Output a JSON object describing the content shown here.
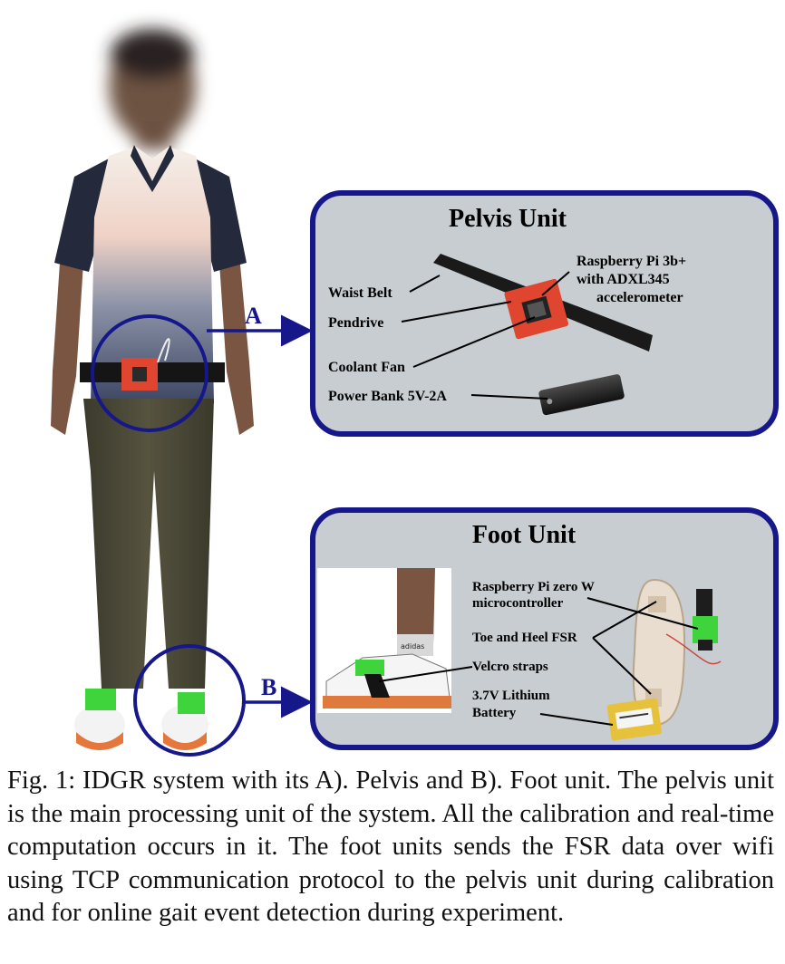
{
  "figure": {
    "marker_a": "A",
    "marker_b": "B",
    "pelvis": {
      "title": "Pelvis Unit",
      "labels": {
        "rpi": [
          "Raspberry Pi 3b+",
          "with ADXL345",
          "accelerometer"
        ],
        "waist_belt": "Waist Belt",
        "pendrive": "Pendrive",
        "coolant_fan": "Coolant Fan",
        "power_bank": "Power Bank 5V-2A"
      }
    },
    "foot": {
      "title": "Foot Unit",
      "labels": {
        "rpi_zero": [
          "Raspberry Pi zero W",
          "microcontroller"
        ],
        "fsr": "Toe and Heel FSR",
        "velcro": "Velcro straps",
        "battery": [
          "3.7V Lithium",
          "Battery"
        ]
      },
      "shoe_brand": "adidas"
    },
    "colors": {
      "frame": "#15178a",
      "panel_bg": "#c7cdd0",
      "pcb_green": "#3fd43c",
      "case_red": "#e0452f"
    }
  },
  "caption": "Fig. 1: IDGR system with its A). Pelvis and B). Foot unit. The pelvis unit is the main processing unit of the system. All the calibration and real-time computation occurs in it. The foot units sends the FSR data over wifi using TCP communication protocol to the pelvis unit during calibration and for online gait event detection during experiment."
}
